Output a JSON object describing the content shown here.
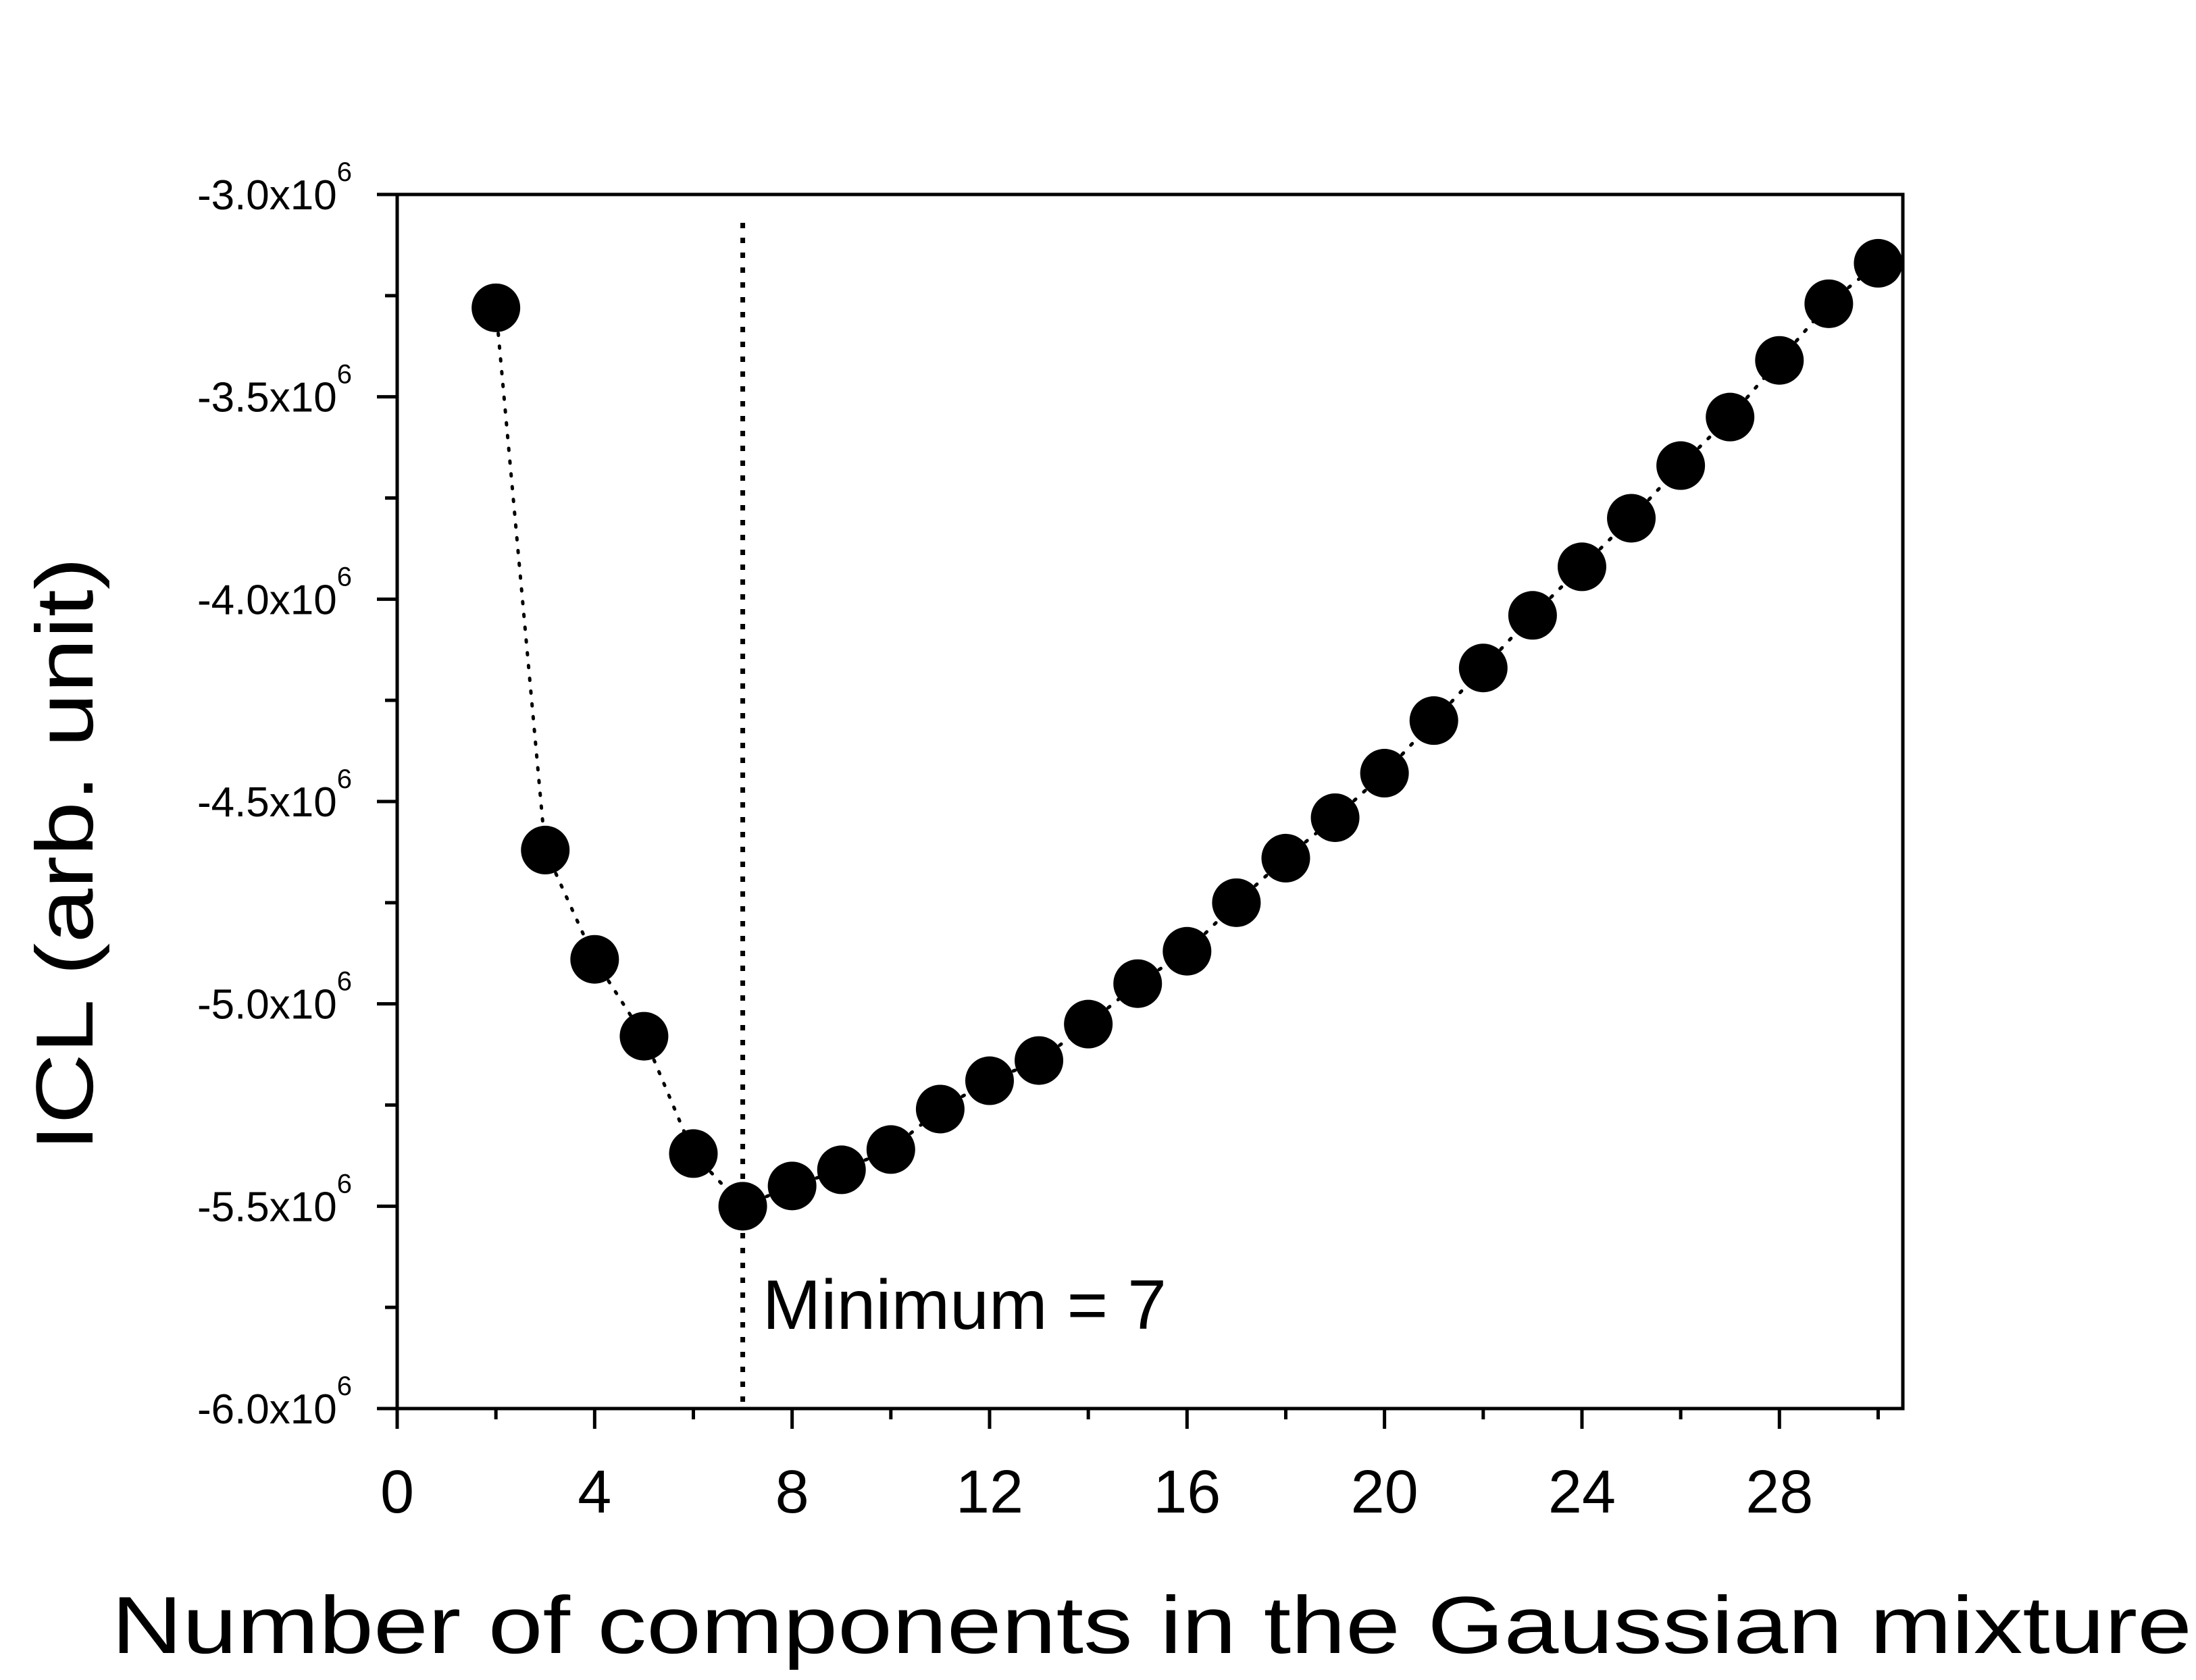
{
  "chart_data": {
    "type": "scatter",
    "xlabel": "Number of components in the Gaussian mixture",
    "ylabel": "ICL (arb. unit)",
    "xlim": [
      0,
      30.5
    ],
    "ylim": [
      -6000000,
      -3000000
    ],
    "x_ticks": [
      0,
      4,
      8,
      12,
      16,
      20,
      24,
      28
    ],
    "y_ticks": [
      {
        "value": -3000000,
        "mantissa": "-3.0x10",
        "exp": "6"
      },
      {
        "value": -3500000,
        "mantissa": "-3.5x10",
        "exp": "6"
      },
      {
        "value": -4000000,
        "mantissa": "-4.0x10",
        "exp": "6"
      },
      {
        "value": -4500000,
        "mantissa": "-4.5x10",
        "exp": "6"
      },
      {
        "value": -5000000,
        "mantissa": "-5.0x10",
        "exp": "6"
      },
      {
        "value": -5500000,
        "mantissa": "-5.5x10",
        "exp": "6"
      },
      {
        "value": -6000000,
        "mantissa": "-6.0x10",
        "exp": "6"
      }
    ],
    "grid": false,
    "marker": "filled-circle",
    "line_style": "dotted",
    "color": "#000000",
    "series": [
      {
        "x": [
          2,
          3,
          4,
          5,
          6,
          7,
          8,
          9,
          10,
          11,
          12,
          13,
          14,
          15,
          16,
          17,
          18,
          19,
          20,
          21,
          22,
          23,
          24,
          25,
          26,
          27,
          28,
          29,
          30
        ],
        "y": [
          -3280000,
          -4620000,
          -4890000,
          -5080000,
          -5370000,
          -5500000,
          -5450000,
          -5410000,
          -5360000,
          -5260000,
          -5190000,
          -5140000,
          -5050000,
          -4950000,
          -4870000,
          -4750000,
          -4640000,
          -4540000,
          -4430000,
          -4300000,
          -4170000,
          -4040000,
          -3920000,
          -3800000,
          -3670000,
          -3550000,
          -3410000,
          -3270000,
          -3170000
        ]
      }
    ],
    "annotations": [
      {
        "type": "vline",
        "x": 7,
        "style": "dotted"
      },
      {
        "type": "text",
        "text": "Minimum = 7",
        "x": 7.4,
        "y": -5750000
      }
    ]
  }
}
